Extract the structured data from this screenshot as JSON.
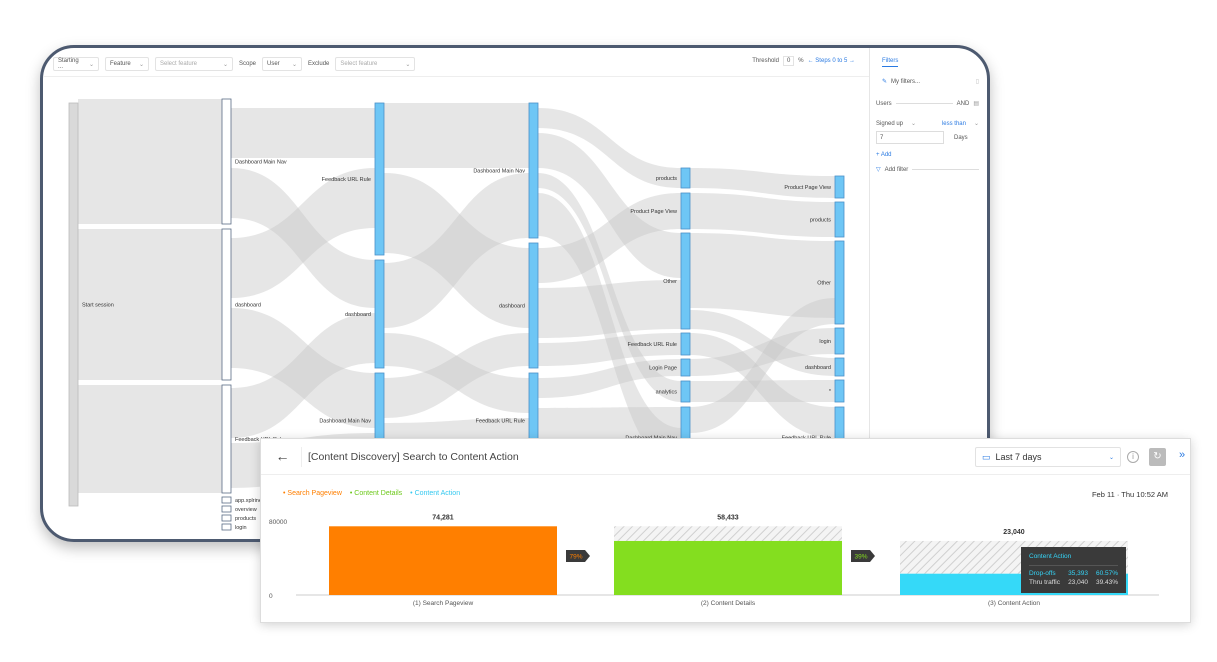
{
  "toolbar": {
    "starting": "Starting ...",
    "feature": "Feature",
    "select_feature_1": "Select feature",
    "scope_label": "Scope",
    "scope": "User",
    "exclude_label": "Exclude",
    "select_feature_2": "Select feature",
    "threshold_label": "Threshold",
    "threshold": "0",
    "pct": "%",
    "steps": "← Steps 0 to 5 →"
  },
  "filters": {
    "tab": "Filters",
    "my_filters": "My filters...",
    "users": "Users",
    "and": "AND",
    "signed_up": "Signed up",
    "less_than": "less than",
    "days_value": "7",
    "days": "Days",
    "add": "+ Add",
    "add_filter": "Add filter"
  },
  "sankey": {
    "columns": [
      [
        {
          "label": "Start session"
        }
      ],
      [
        {
          "label": "Dashboard Main Nav"
        },
        {
          "label": "dashboard"
        },
        {
          "label": "Feedback URL Rule"
        },
        {
          "label": "app.xplrine"
        },
        {
          "label": "overview"
        },
        {
          "label": "products"
        },
        {
          "label": "login"
        }
      ],
      [
        {
          "label": "Feedback URL Rule"
        },
        {
          "label": "dashboard"
        },
        {
          "label": "Dashboard Main Nav"
        }
      ],
      [
        {
          "label": "Dashboard Main Nav"
        },
        {
          "label": "dashboard"
        },
        {
          "label": "Feedback URL Rule"
        }
      ],
      [
        {
          "label": "products"
        },
        {
          "label": "Product Page View"
        },
        {
          "label": "Other"
        },
        {
          "label": "Feedback URL Rule"
        },
        {
          "label": "Login Page"
        },
        {
          "label": "analytics"
        },
        {
          "label": "Dashboard Main Nav"
        }
      ],
      [
        {
          "label": "Product Page View"
        },
        {
          "label": "products"
        },
        {
          "label": "Other"
        },
        {
          "label": "login"
        },
        {
          "label": "dashboard"
        },
        {
          "label": "*"
        },
        {
          "label": "Feedback URL Rule"
        }
      ]
    ]
  },
  "funnel": {
    "title": "[Content Discovery] Search to Content Action",
    "date_range": "Last 7 days",
    "timestamp": "Feb 11 · Thu 10:52 AM",
    "tooltip": {
      "title": "Content Action",
      "dropoffs_label": "Drop-offs",
      "dropoffs": "35,393",
      "dropoffs_pct": "60.57%",
      "thru_label": "Thru traffic",
      "thru": "23,040",
      "thru_pct": "39.43%"
    }
  },
  "chart_data": {
    "type": "bar",
    "title": "[Content Discovery] Search to Content Action",
    "categories": [
      "(1) Search Pageview",
      "(2) Content Details",
      "(3) Content Action"
    ],
    "legend": [
      "Search Pageview",
      "Content Details",
      "Content Action"
    ],
    "values": [
      74281,
      58433,
      23040
    ],
    "value_labels": [
      "74,281",
      "58,433",
      "23,040"
    ],
    "conversions": [
      "79%",
      "39%"
    ],
    "colors": [
      "#ff7f00",
      "#84de1f",
      "#35d9f8"
    ],
    "ylim": [
      0,
      80000
    ],
    "yticks": [
      "0",
      "80000"
    ]
  }
}
